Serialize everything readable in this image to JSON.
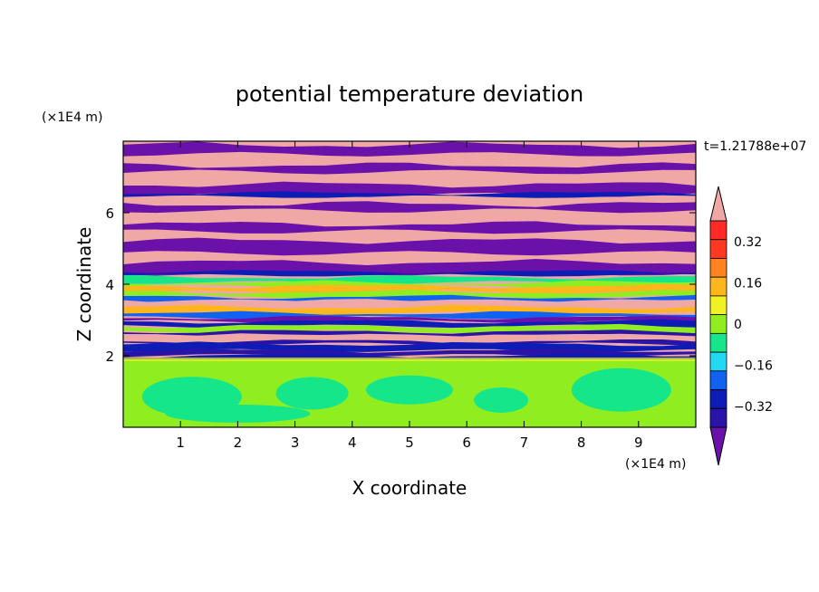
{
  "chart_data": {
    "type": "heatmap",
    "title": "potential temperature deviation",
    "xlabel": "X coordinate",
    "ylabel": "Z coordinate",
    "x_unit": "(×1E4 m)",
    "y_unit": "(×1E4 m)",
    "time_label": "t=1.21788e+07",
    "xlim": [
      0,
      10
    ],
    "ylim": [
      0,
      8
    ],
    "x_ticks": [
      1,
      2,
      3,
      4,
      5,
      6,
      7,
      8,
      9
    ],
    "y_ticks": [
      2,
      4,
      6
    ],
    "colorbar": {
      "levels": [
        -0.48,
        -0.4,
        -0.32,
        -0.24,
        -0.16,
        -0.08,
        0,
        0.08,
        0.16,
        0.24,
        0.32,
        0.4,
        0.48
      ],
      "labeled_levels": [
        0.32,
        0.16,
        0,
        -0.16,
        -0.32
      ],
      "label_text": [
        "0.32",
        "0.16",
        "0",
        "−0.16",
        "−0.32"
      ],
      "colors_low_to_high": [
        "#6a11aa",
        "#2a14a8",
        "#0c1cb4",
        "#1162f0",
        "#22d8f2",
        "#16e68a",
        "#90ee20",
        "#f2f222",
        "#ffb61c",
        "#ff8420",
        "#ff3820",
        "#ff2a26",
        "#f0a8a6"
      ]
    },
    "description_of_field": {
      "lower_layer_z": [
        0,
        1.9
      ],
      "lower_layer_colors": [
        "#16e68a",
        "#90ee20"
      ],
      "mixing_zone_z": [
        1.9,
        4.2
      ],
      "upper_layer_z": [
        4.2,
        8
      ],
      "upper_layer_colors": [
        "#f0a8a6",
        "#6a11aa"
      ]
    }
  }
}
